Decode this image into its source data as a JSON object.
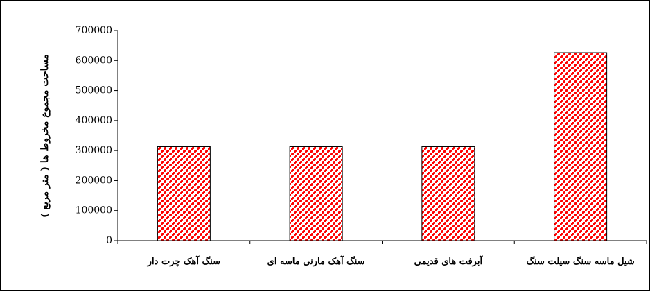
{
  "chart_data": {
    "type": "bar",
    "categories": [
      "سنگ آهک چرت دار",
      "سنگ آهک مارنی ماسه ای",
      "آبرفت های قدیمی",
      "شیل ماسه سنگ سیلت سنگ"
    ],
    "values": [
      313000,
      313000,
      313000,
      626000
    ],
    "ylabel": "مساحت مجموع مخروط ها ( متر مربع )",
    "xlabel": "",
    "ylim": [
      0,
      700000
    ],
    "yticks": [
      0,
      100000,
      200000,
      300000,
      400000,
      500000,
      600000,
      700000
    ],
    "ytick_labels": [
      "0",
      "100000",
      "200000",
      "300000",
      "400000",
      "500000",
      "600000",
      "700000"
    ],
    "grid": false,
    "legend": "none",
    "bar_pattern_colors": {
      "base": "#ff0000",
      "dots": "#ffffff",
      "border": "#000000"
    }
  }
}
